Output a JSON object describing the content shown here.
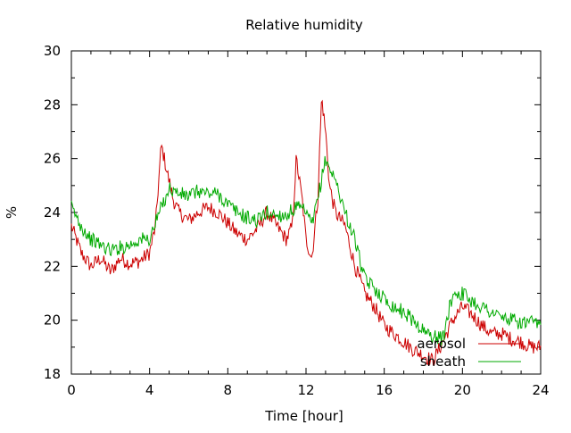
{
  "chart_data": {
    "type": "line",
    "title": "Relative humidity",
    "xlabel": "Time [hour]",
    "ylabel": "%",
    "xlim": [
      0,
      24
    ],
    "ylim": [
      18,
      30
    ],
    "xticks": [
      0,
      4,
      8,
      12,
      16,
      20,
      24
    ],
    "yticks": [
      18,
      20,
      22,
      24,
      26,
      28,
      30
    ],
    "grid": false,
    "legend_position": "bottom-right",
    "series": [
      {
        "name": "aerosol",
        "color": "#cc0000",
        "x": [
          0,
          0.5,
          1,
          1.5,
          2,
          2.5,
          3,
          3.5,
          4,
          4.3,
          4.6,
          4.9,
          5.2,
          5.5,
          6,
          6.5,
          7,
          7.5,
          8,
          8.5,
          9,
          9.5,
          10,
          10.5,
          11,
          11.3,
          11.5,
          11.8,
          12,
          12.3,
          12.6,
          12.8,
          13,
          13.2,
          13.5,
          14,
          14.5,
          15,
          15.5,
          16,
          16.5,
          17,
          17.5,
          18,
          18.5,
          19,
          19.5,
          20,
          20.5,
          21,
          21.5,
          22,
          22.5,
          23,
          23.5,
          24
        ],
        "y": [
          23.5,
          22.5,
          22.0,
          22.3,
          21.8,
          22.3,
          22.1,
          22.2,
          22.5,
          23.5,
          26.5,
          25.5,
          24.5,
          24.0,
          23.7,
          24.0,
          24.2,
          24.0,
          23.6,
          23.2,
          23.0,
          23.4,
          24.0,
          23.5,
          23.0,
          23.5,
          26.0,
          24.5,
          23.0,
          22.3,
          24.5,
          28.3,
          27.0,
          25.0,
          24.0,
          23.5,
          22.0,
          21.0,
          20.5,
          19.8,
          19.5,
          19.2,
          18.9,
          18.7,
          18.5,
          19.2,
          20.0,
          20.5,
          20.2,
          19.8,
          19.5,
          19.5,
          19.3,
          19.2,
          19.0,
          19.0
        ]
      },
      {
        "name": "sheath",
        "color": "#00aa00",
        "x": [
          0,
          0.5,
          1,
          1.5,
          2,
          2.5,
          3,
          3.5,
          4,
          4.5,
          5,
          5.5,
          6,
          6.5,
          7,
          7.5,
          8,
          8.5,
          9,
          9.5,
          10,
          10.5,
          11,
          11.5,
          12,
          12.3,
          12.6,
          13,
          13.3,
          13.6,
          14,
          14.5,
          15,
          15.5,
          16,
          16.5,
          17,
          17.5,
          18,
          18.5,
          19,
          19.5,
          20,
          20.5,
          21,
          21.5,
          22,
          22.5,
          23,
          23.5,
          24
        ],
        "y": [
          24.2,
          23.5,
          23.0,
          22.8,
          22.6,
          22.7,
          22.8,
          23.0,
          23.0,
          24.0,
          24.9,
          24.7,
          24.6,
          24.8,
          24.7,
          24.7,
          24.3,
          24.0,
          23.8,
          23.7,
          24.0,
          23.9,
          23.9,
          24.2,
          24.0,
          23.5,
          24.5,
          26.0,
          25.5,
          25.0,
          24.0,
          23.0,
          21.5,
          21.2,
          20.8,
          20.5,
          20.3,
          20.0,
          19.6,
          19.4,
          19.3,
          21.0,
          21.0,
          20.7,
          20.5,
          20.3,
          20.1,
          20.0,
          19.9,
          19.9,
          19.8
        ]
      }
    ]
  }
}
